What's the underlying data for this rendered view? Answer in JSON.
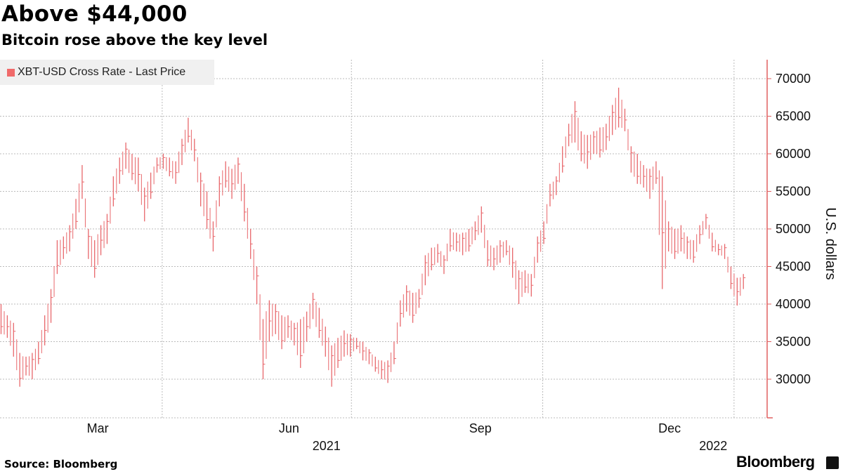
{
  "header": {
    "title": "Above $44,000",
    "subtitle": "Bitcoin rose above the key level"
  },
  "footer": {
    "source": "Source: Bloomberg",
    "logo": "Bloomberg"
  },
  "colors": {
    "series": "#e8676b",
    "axis": "#e06060",
    "grid": "#bbbbbb"
  },
  "chart_data": {
    "type": "bar",
    "style": "high-low bars",
    "title": "Above $44,000",
    "subtitle": "Bitcoin rose above the key level",
    "legend": [
      "XBT-USD Cross Rate - Last Price"
    ],
    "legend_placement": "top-left",
    "ylabel": "U.S. dollars",
    "ylim": [
      25000,
      72500
    ],
    "yticks": [
      30000,
      35000,
      40000,
      45000,
      50000,
      55000,
      60000,
      65000,
      70000
    ],
    "x_start": "2021-01-13",
    "x_interval_days": 3,
    "month_ticks": [
      {
        "label": "Mar",
        "day": 47
      },
      {
        "label": "Jun",
        "day": 139
      },
      {
        "label": "Sep",
        "day": 231
      },
      {
        "label": "Dec",
        "day": 322
      }
    ],
    "year_ticks": [
      {
        "label": "2021",
        "day": 157
      },
      {
        "label": "2022",
        "day": 343
      }
    ],
    "gridlines_days": [
      78,
      169,
      261,
      353
    ],
    "grid": true,
    "series": [
      {
        "name": "XBT-USD Cross Rate - Last Price",
        "low_high": [
          [
            36000,
            40000
          ],
          [
            35500,
            38500
          ],
          [
            33000,
            37500
          ],
          [
            29000,
            33500
          ],
          [
            30500,
            33000
          ],
          [
            30000,
            33500
          ],
          [
            32000,
            35000
          ],
          [
            34500,
            38500
          ],
          [
            37500,
            42000
          ],
          [
            44000,
            48500
          ],
          [
            46000,
            49000
          ],
          [
            47000,
            50500
          ],
          [
            50000,
            54000
          ],
          [
            54000,
            58500
          ],
          [
            46000,
            50000
          ],
          [
            43500,
            48500
          ],
          [
            46500,
            50500
          ],
          [
            48000,
            52000
          ],
          [
            53000,
            57000
          ],
          [
            56000,
            59500
          ],
          [
            58000,
            61500
          ],
          [
            56500,
            60000
          ],
          [
            55000,
            59500
          ],
          [
            51000,
            55500
          ],
          [
            54000,
            57500
          ],
          [
            57500,
            59500
          ],
          [
            58000,
            60000
          ],
          [
            57000,
            59500
          ],
          [
            56000,
            59000
          ],
          [
            58500,
            62000
          ],
          [
            61500,
            64800
          ],
          [
            59000,
            62000
          ],
          [
            53000,
            57500
          ],
          [
            50000,
            55000
          ],
          [
            47000,
            51000
          ],
          [
            53000,
            57000
          ],
          [
            55500,
            59000
          ],
          [
            54000,
            58000
          ],
          [
            56000,
            59500
          ],
          [
            51000,
            56000
          ],
          [
            46000,
            50000
          ],
          [
            40000,
            45000
          ],
          [
            30000,
            38000
          ],
          [
            35000,
            40500
          ],
          [
            36000,
            40000
          ],
          [
            34000,
            38500
          ],
          [
            35500,
            38500
          ],
          [
            34500,
            37500
          ],
          [
            31500,
            38000
          ],
          [
            35000,
            39000
          ],
          [
            38000,
            41500
          ],
          [
            35500,
            39500
          ],
          [
            33000,
            37000
          ],
          [
            29000,
            34500
          ],
          [
            31500,
            35500
          ],
          [
            33000,
            36500
          ],
          [
            33000,
            36000
          ],
          [
            34000,
            35500
          ],
          [
            32500,
            35000
          ],
          [
            32000,
            34000
          ],
          [
            31000,
            33000
          ],
          [
            30000,
            32500
          ],
          [
            29500,
            32500
          ],
          [
            32000,
            35000
          ],
          [
            37000,
            40500
          ],
          [
            39000,
            42500
          ],
          [
            37500,
            41500
          ],
          [
            39500,
            42000
          ],
          [
            42500,
            46500
          ],
          [
            44500,
            47500
          ],
          [
            45500,
            48000
          ],
          [
            44000,
            46500
          ],
          [
            47000,
            50000
          ],
          [
            47000,
            49500
          ],
          [
            46500,
            49500
          ],
          [
            47000,
            50000
          ],
          [
            48500,
            51000
          ],
          [
            49500,
            53000
          ],
          [
            45000,
            48500
          ],
          [
            44500,
            47500
          ],
          [
            45500,
            48500
          ],
          [
            46500,
            48500
          ],
          [
            43500,
            47500
          ],
          [
            40000,
            44500
          ],
          [
            41500,
            44500
          ],
          [
            41000,
            44000
          ],
          [
            45500,
            49000
          ],
          [
            48000,
            51000
          ],
          [
            53000,
            56000
          ],
          [
            54500,
            57000
          ],
          [
            57500,
            61000
          ],
          [
            61000,
            64000
          ],
          [
            61500,
            67000
          ],
          [
            59000,
            63000
          ],
          [
            58000,
            62500
          ],
          [
            60000,
            63000
          ],
          [
            59500,
            63500
          ],
          [
            60500,
            64000
          ],
          [
            62500,
            66500
          ],
          [
            63500,
            68800
          ],
          [
            63000,
            66000
          ],
          [
            57500,
            61000
          ],
          [
            56000,
            60000
          ],
          [
            55500,
            58500
          ],
          [
            54000,
            58000
          ],
          [
            56000,
            59000
          ],
          [
            42000,
            57000
          ],
          [
            47000,
            51000
          ],
          [
            46000,
            50000
          ],
          [
            47000,
            50500
          ],
          [
            46000,
            49000
          ],
          [
            45500,
            48500
          ],
          [
            48000,
            50500
          ],
          [
            50000,
            52000
          ],
          [
            47000,
            49500
          ],
          [
            46500,
            48000
          ],
          [
            46000,
            48000
          ],
          [
            42000,
            45000
          ],
          [
            39800,
            43500
          ],
          [
            42000,
            44000
          ]
        ]
      }
    ]
  }
}
